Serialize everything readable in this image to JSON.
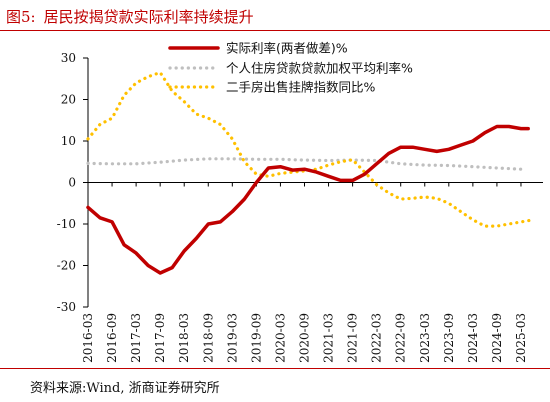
{
  "header": {
    "figure_label": "图5:",
    "title": "居民按揭贷款实际利率持续提升"
  },
  "footer": {
    "source": "资料来源:Wind, 浙商证券研究所"
  },
  "chart_data": {
    "type": "line",
    "ylim": [
      -30,
      30
    ],
    "yticks": [
      30,
      20,
      10,
      0,
      -10,
      -20,
      -30
    ],
    "x_range": [
      2016.25,
      2025.5
    ],
    "xtick_values": [
      2016.25,
      2016.75,
      2017.25,
      2017.75,
      2018.25,
      2018.75,
      2019.25,
      2019.75,
      2020.25,
      2020.75,
      2021.25,
      2021.75,
      2022.25,
      2022.75,
      2023.25,
      2023.75,
      2024.25,
      2024.75,
      2025.25
    ],
    "xtick_labels": [
      "2016-03",
      "2016-09",
      "2017-03",
      "2017-09",
      "2018-03",
      "2018-09",
      "2019-03",
      "2019-09",
      "2020-03",
      "2020-09",
      "2021-03",
      "2021-09",
      "2022-03",
      "2022-09",
      "2023-03",
      "2023-09",
      "2024-03",
      "2024-09",
      "2025-03"
    ],
    "legend_position": "top-right",
    "series": [
      {
        "name": "实际利率(两者做差)%",
        "color": "#c00000",
        "style": "solid",
        "points": [
          [
            2016.25,
            -6
          ],
          [
            2016.5,
            -8.5
          ],
          [
            2016.75,
            -9.5
          ],
          [
            2017.0,
            -15
          ],
          [
            2017.25,
            -17
          ],
          [
            2017.5,
            -20
          ],
          [
            2017.75,
            -21.8
          ],
          [
            2018.0,
            -20.5
          ],
          [
            2018.25,
            -16.5
          ],
          [
            2018.5,
            -13.5
          ],
          [
            2018.75,
            -10
          ],
          [
            2019.0,
            -9.5
          ],
          [
            2019.25,
            -7
          ],
          [
            2019.5,
            -4
          ],
          [
            2019.75,
            0
          ],
          [
            2020.0,
            3.5
          ],
          [
            2020.25,
            3.8
          ],
          [
            2020.5,
            3
          ],
          [
            2020.75,
            3.2
          ],
          [
            2021.0,
            2.5
          ],
          [
            2021.25,
            1.5
          ],
          [
            2021.5,
            0.5
          ],
          [
            2021.75,
            0.5
          ],
          [
            2022.0,
            2
          ],
          [
            2022.25,
            4.5
          ],
          [
            2022.5,
            7
          ],
          [
            2022.75,
            8.5
          ],
          [
            2023.0,
            8.5
          ],
          [
            2023.25,
            8
          ],
          [
            2023.5,
            7.5
          ],
          [
            2023.75,
            8
          ],
          [
            2024.0,
            9
          ],
          [
            2024.25,
            10
          ],
          [
            2024.5,
            12
          ],
          [
            2024.75,
            13.5
          ],
          [
            2025.0,
            13.5
          ],
          [
            2025.25,
            13
          ],
          [
            2025.4,
            13
          ]
        ]
      },
      {
        "name": "个人住房贷款贷款加权平均利率%",
        "color": "#bfbfbf",
        "style": "dotted",
        "points": [
          [
            2016.25,
            4.6
          ],
          [
            2016.75,
            4.5
          ],
          [
            2017.25,
            4.5
          ],
          [
            2017.75,
            4.9
          ],
          [
            2018.25,
            5.4
          ],
          [
            2018.75,
            5.7
          ],
          [
            2019.25,
            5.7
          ],
          [
            2019.75,
            5.6
          ],
          [
            2020.25,
            5.6
          ],
          [
            2020.75,
            5.4
          ],
          [
            2021.25,
            5.3
          ],
          [
            2021.75,
            5.4
          ],
          [
            2022.25,
            5.3
          ],
          [
            2022.75,
            4.5
          ],
          [
            2023.25,
            4.2
          ],
          [
            2023.75,
            4.1
          ],
          [
            2024.25,
            3.8
          ],
          [
            2024.75,
            3.5
          ],
          [
            2025.25,
            3.2
          ]
        ]
      },
      {
        "name": "二手房出售挂牌指数同比%",
        "color": "#ffc000",
        "style": "dotted",
        "points": [
          [
            2016.25,
            10.5
          ],
          [
            2016.5,
            14
          ],
          [
            2016.75,
            15.5
          ],
          [
            2017.0,
            21
          ],
          [
            2017.25,
            24
          ],
          [
            2017.5,
            25.5
          ],
          [
            2017.75,
            26.5
          ],
          [
            2018.0,
            22
          ],
          [
            2018.25,
            19.5
          ],
          [
            2018.5,
            16.5
          ],
          [
            2018.75,
            15.5
          ],
          [
            2019.0,
            14
          ],
          [
            2019.25,
            10.5
          ],
          [
            2019.5,
            5
          ],
          [
            2019.75,
            2
          ],
          [
            2020.0,
            1.5
          ],
          [
            2020.25,
            2.2
          ],
          [
            2020.5,
            2.5
          ],
          [
            2020.75,
            2.8
          ],
          [
            2021.0,
            3.2
          ],
          [
            2021.25,
            4.2
          ],
          [
            2021.5,
            5
          ],
          [
            2021.75,
            5.5
          ],
          [
            2022.0,
            2.5
          ],
          [
            2022.25,
            -0.5
          ],
          [
            2022.5,
            -2.5
          ],
          [
            2022.75,
            -4
          ],
          [
            2023.0,
            -3.8
          ],
          [
            2023.25,
            -3.5
          ],
          [
            2023.5,
            -3.8
          ],
          [
            2023.75,
            -5
          ],
          [
            2024.0,
            -7
          ],
          [
            2024.25,
            -9
          ],
          [
            2024.5,
            -10.5
          ],
          [
            2024.75,
            -10.5
          ],
          [
            2025.0,
            -10
          ],
          [
            2025.25,
            -9.5
          ],
          [
            2025.5,
            -9
          ]
        ]
      }
    ]
  }
}
